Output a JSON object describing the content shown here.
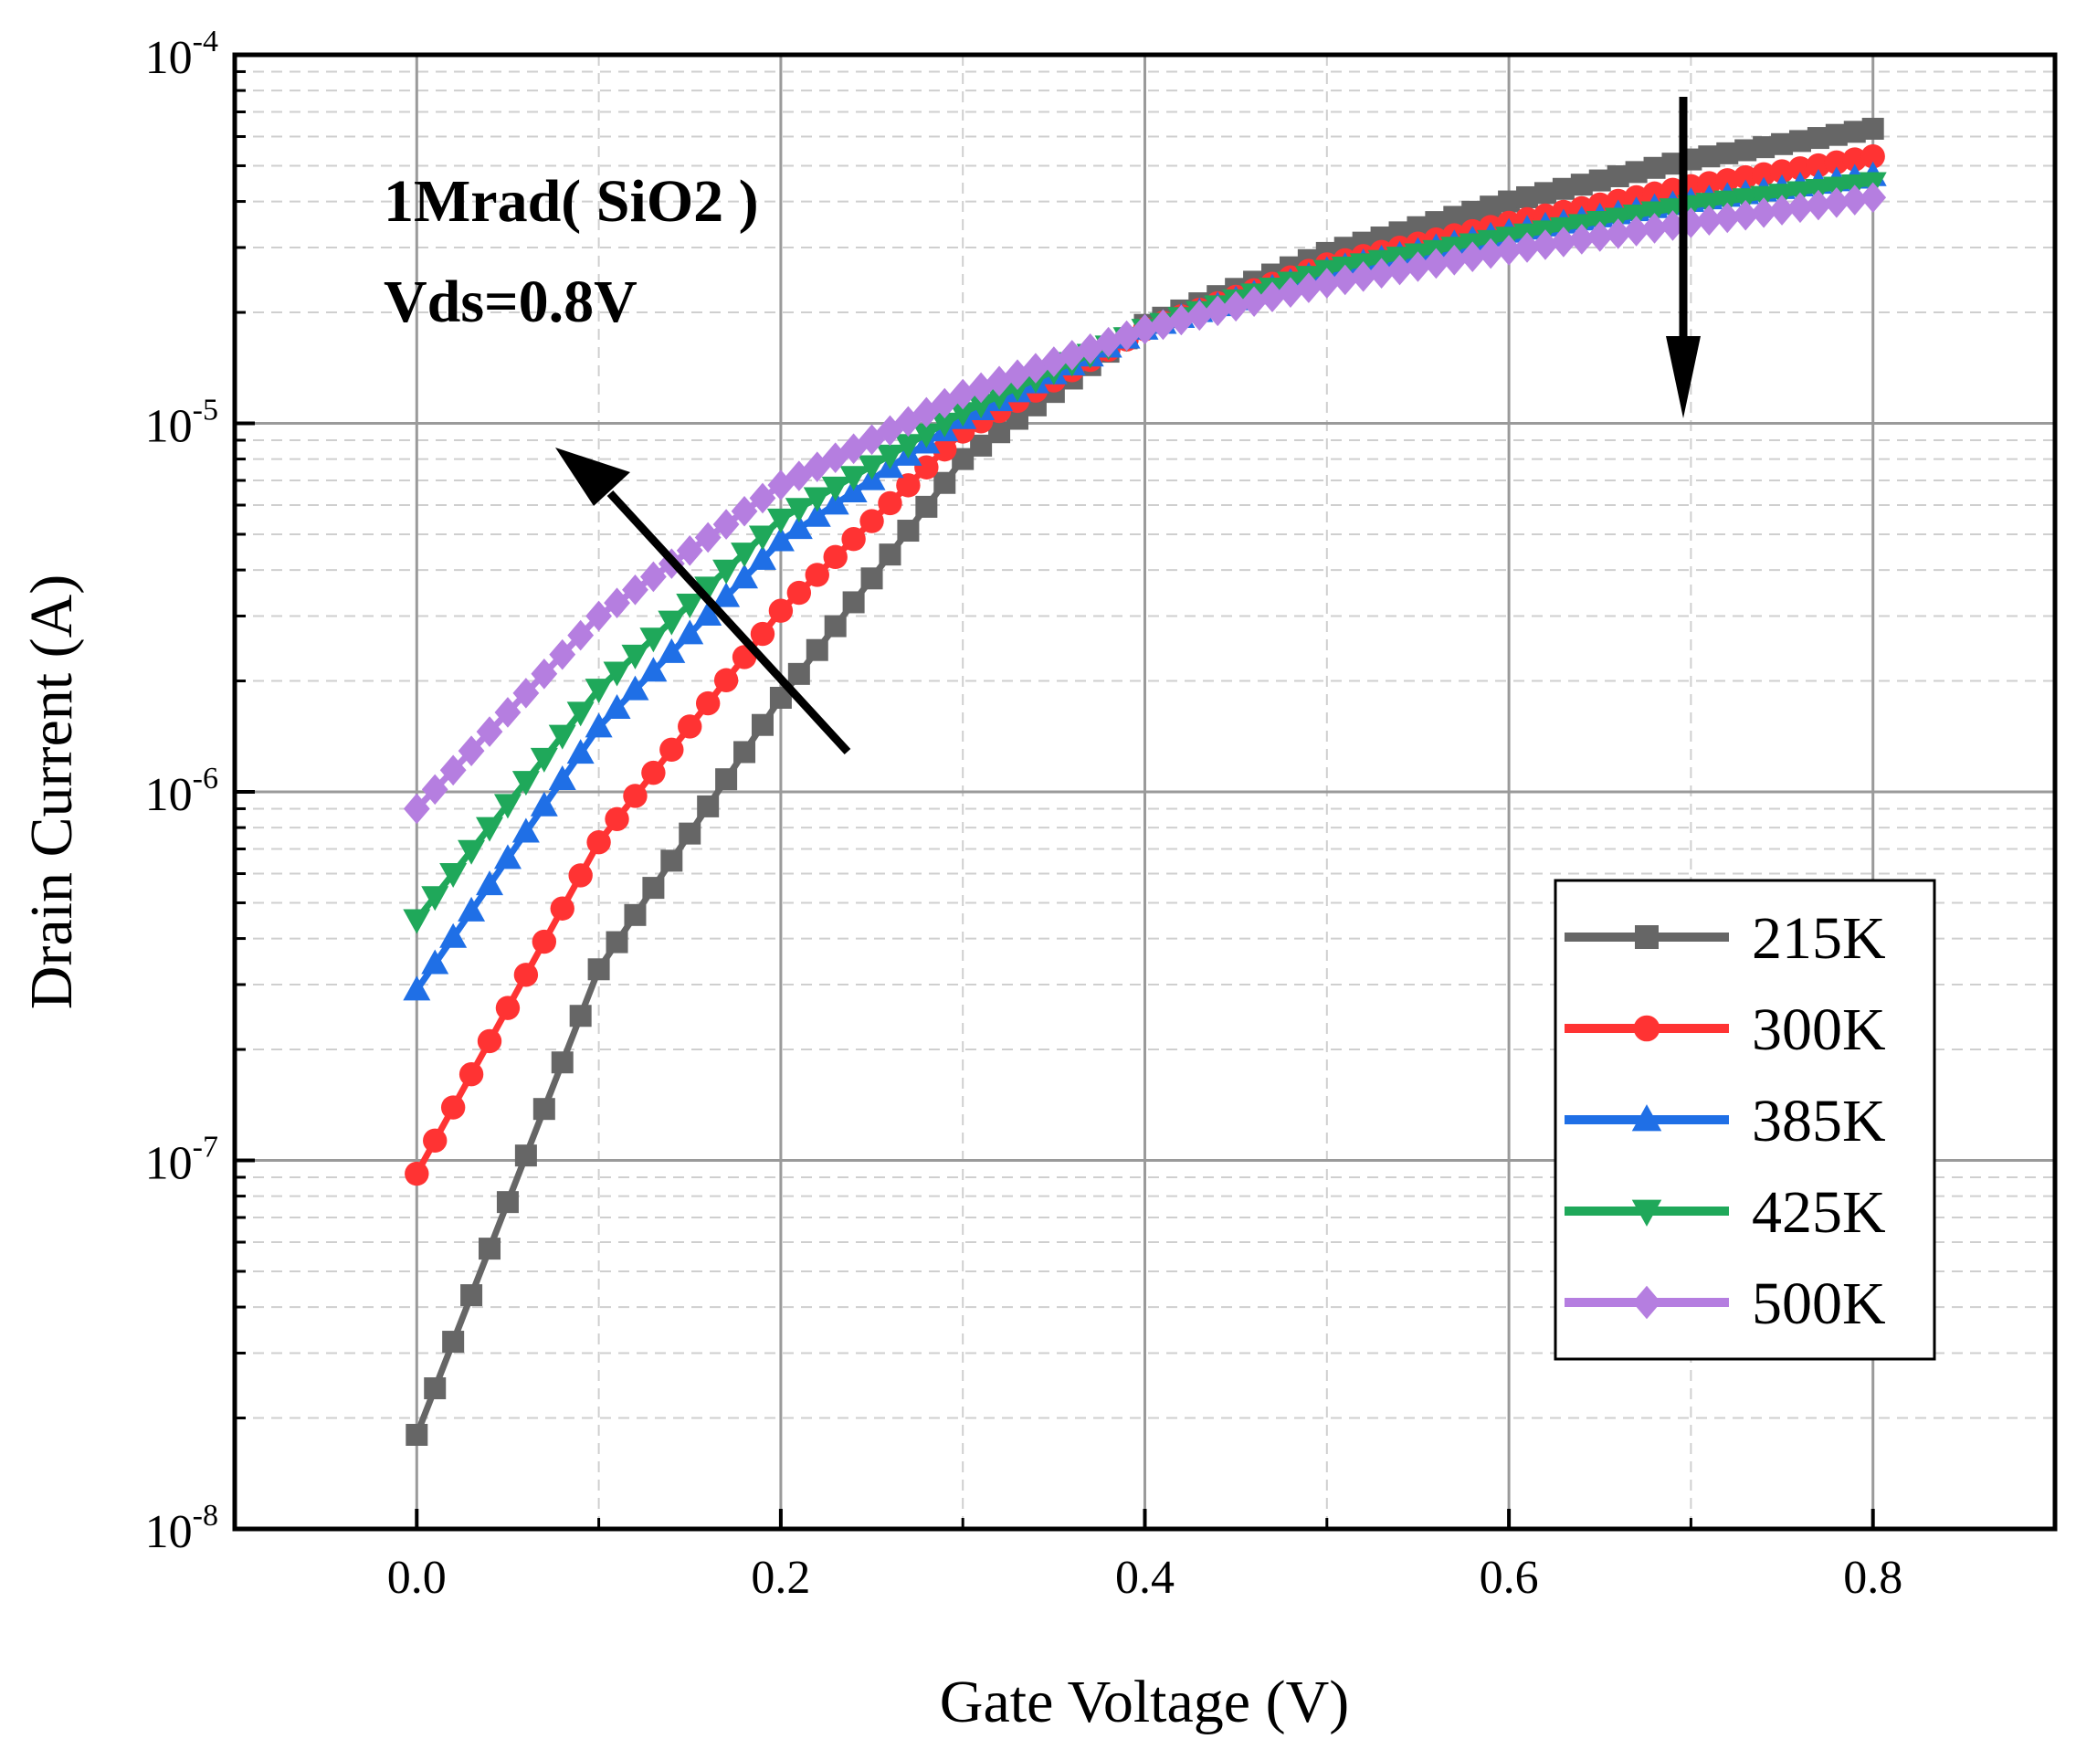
{
  "chart_data": {
    "type": "line",
    "title": "",
    "xlabel": "Gate Voltage (V)",
    "ylabel": "Drain Current (A)",
    "xlim": [
      -0.1,
      0.9
    ],
    "ylim": [
      1e-08,
      0.0001
    ],
    "y_scale": "log",
    "grid": true,
    "legend_position": "bottom-right",
    "x_ticks": [
      "0.0",
      "0.2",
      "0.4",
      "0.6",
      "0.8"
    ],
    "y_ticks": [
      {
        "base": "10",
        "exp": "-8"
      },
      {
        "base": "10",
        "exp": "-7"
      },
      {
        "base": "10",
        "exp": "-6"
      },
      {
        "base": "10",
        "exp": "-5"
      },
      {
        "base": "10",
        "exp": "-4"
      }
    ],
    "annotations": [
      "1Mrad( SiO2 )",
      "Vds=0.8V"
    ],
    "series": [
      {
        "name": "215K",
        "color": "#666666",
        "marker": "square",
        "anchors_x": [
          0,
          0.1,
          0.2,
          0.3,
          0.4,
          0.5,
          0.6,
          0.7,
          0.8
        ],
        "anchors_y": [
          1.8e-08,
          3.3e-07,
          1.8e-06,
          8e-06,
          1.85e-05,
          2.9e-05,
          4e-05,
          5.2e-05,
          6.3e-05
        ]
      },
      {
        "name": "300K",
        "color": "#ff3333",
        "marker": "circle",
        "anchors_x": [
          0,
          0.1,
          0.2,
          0.3,
          0.4,
          0.5,
          0.6,
          0.7,
          0.8
        ],
        "anchors_y": [
          9.2e-08,
          7.3e-07,
          3.1e-06,
          9.5e-06,
          1.8e-05,
          2.7e-05,
          3.5e-05,
          4.4e-05,
          5.3e-05
        ]
      },
      {
        "name": "385K",
        "color": "#1f6fe6",
        "marker": "triangle-up",
        "anchors_x": [
          0,
          0.1,
          0.2,
          0.3,
          0.4,
          0.5,
          0.6,
          0.7,
          0.8
        ],
        "anchors_y": [
          2.9e-07,
          1.5e-06,
          4.8e-06,
          1.03e-05,
          1.8e-05,
          2.6e-05,
          3.3e-05,
          4e-05,
          4.7e-05
        ]
      },
      {
        "name": "425K",
        "color": "#1fa85a",
        "marker": "triangle-down",
        "anchors_x": [
          0,
          0.1,
          0.2,
          0.3,
          0.4,
          0.5,
          0.6,
          0.7,
          0.8
        ],
        "anchors_y": [
          4.5e-07,
          1.9e-06,
          5.5e-06,
          1.07e-05,
          1.8e-05,
          2.6e-05,
          3.2e-05,
          3.9e-05,
          4.5e-05
        ]
      },
      {
        "name": "500K",
        "color": "#b57ee0",
        "marker": "diamond",
        "anchors_x": [
          0,
          0.1,
          0.2,
          0.3,
          0.4,
          0.5,
          0.6,
          0.7,
          0.8
        ],
        "anchors_y": [
          9e-07,
          3e-06,
          6.8e-06,
          1.2e-05,
          1.8e-05,
          2.4e-05,
          2.95e-05,
          3.5e-05,
          4.1e-05
        ]
      }
    ]
  }
}
